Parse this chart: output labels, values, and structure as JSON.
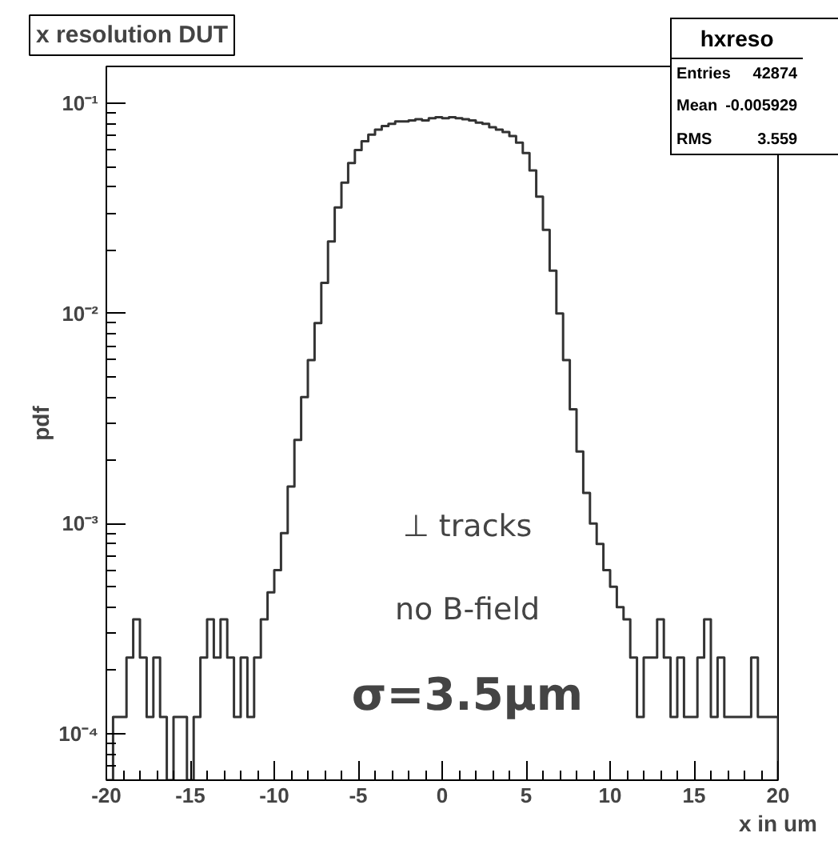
{
  "chart_data": {
    "type": "histogram",
    "title": "x resolution DUT",
    "xlabel": "x in um",
    "ylabel": "pdf",
    "annotations": [
      "hxreso",
      "Entries 42874",
      "Mean -0.005929",
      "RMS 3.559",
      "⊥ tracks",
      "no B-field",
      "σ=3.5μm"
    ],
    "bins": [
      -20.0,
      -19.6,
      -19.2,
      -18.8,
      -18.4,
      -18.0,
      -17.6,
      -17.2,
      -16.8,
      -16.4,
      -16.0,
      -15.6,
      -15.2,
      -14.8,
      -14.4,
      -14.0,
      -13.6,
      -13.2,
      -12.8,
      -12.4,
      -12.0,
      -11.6,
      -11.2,
      -10.8,
      -10.4,
      -10.0,
      -9.6,
      -9.2,
      -8.8,
      -8.4,
      -8.0,
      -7.6,
      -7.2,
      -6.8,
      -6.4,
      -6.0,
      -5.6,
      -5.2,
      -4.8,
      -4.4,
      -4.0,
      -3.6,
      -3.2,
      -2.8,
      -2.4,
      -2.0,
      -1.6,
      -1.2,
      -0.8,
      -0.4,
      0.0,
      0.4,
      0.8,
      1.2,
      1.6,
      2.0,
      2.4,
      2.8,
      3.2,
      3.6,
      4.0,
      4.4,
      4.8,
      5.2,
      5.6,
      6.0,
      6.4,
      6.8,
      7.2,
      7.6,
      8.0,
      8.4,
      8.8,
      9.2,
      9.6,
      10.0,
      10.4,
      10.8,
      11.2,
      11.6,
      12.0,
      12.4,
      12.8,
      13.2,
      13.6,
      14.0,
      14.4,
      14.8,
      15.2,
      15.6,
      16.0,
      16.4,
      16.8,
      17.2,
      17.6,
      18.0,
      18.4,
      18.8,
      19.2,
      19.6,
      20.0
    ],
    "values": [
      null,
      0.00012,
      0.00012,
      0.00023,
      0.00035,
      0.00023,
      0.00012,
      0.00023,
      0.00012,
      null,
      0.00012,
      0.00012,
      null,
      0.00012,
      0.00023,
      0.00035,
      0.00023,
      0.00035,
      0.00023,
      0.00012,
      0.00023,
      0.00012,
      0.00023,
      0.00035,
      0.00047,
      0.0006,
      0.0009,
      0.0015,
      0.0025,
      0.004,
      0.006,
      0.009,
      0.014,
      0.022,
      0.032,
      0.042,
      0.052,
      0.06,
      0.066,
      0.071,
      0.075,
      0.078,
      0.08,
      0.082,
      0.082,
      0.083,
      0.084,
      0.083,
      0.085,
      0.086,
      0.085,
      0.086,
      0.085,
      0.084,
      0.083,
      0.081,
      0.08,
      0.077,
      0.075,
      0.073,
      0.07,
      0.065,
      0.058,
      0.048,
      0.036,
      0.025,
      0.016,
      0.01,
      0.006,
      0.0035,
      0.0022,
      0.0014,
      0.001,
      0.0008,
      0.0006,
      0.0005,
      0.0004,
      0.00035,
      0.00023,
      0.00012,
      0.00023,
      0.00023,
      0.00035,
      0.00023,
      0.00012,
      0.00023,
      0.00012,
      0.00012,
      0.00023,
      0.00035,
      0.00012,
      0.00023,
      0.00012,
      0.00012,
      0.00012,
      0.00012,
      0.00023,
      0.00012,
      0.00012,
      0.00012
    ],
    "color": "#333333",
    "log": "y",
    "grid": false,
    "xlim": [
      -20,
      20
    ],
    "ylim": [
      6e-05,
      0.15
    ],
    "xticks": [
      -20,
      -15,
      -10,
      -5,
      0,
      5,
      10,
      15,
      20
    ],
    "yticks": [
      {
        "value": 0.0001,
        "label": "10⁻⁴"
      },
      {
        "value": 0.001,
        "label": "10⁻³"
      },
      {
        "value": 0.01,
        "label": "10⁻²"
      },
      {
        "value": 0.1,
        "label": "10⁻¹"
      }
    ]
  }
}
